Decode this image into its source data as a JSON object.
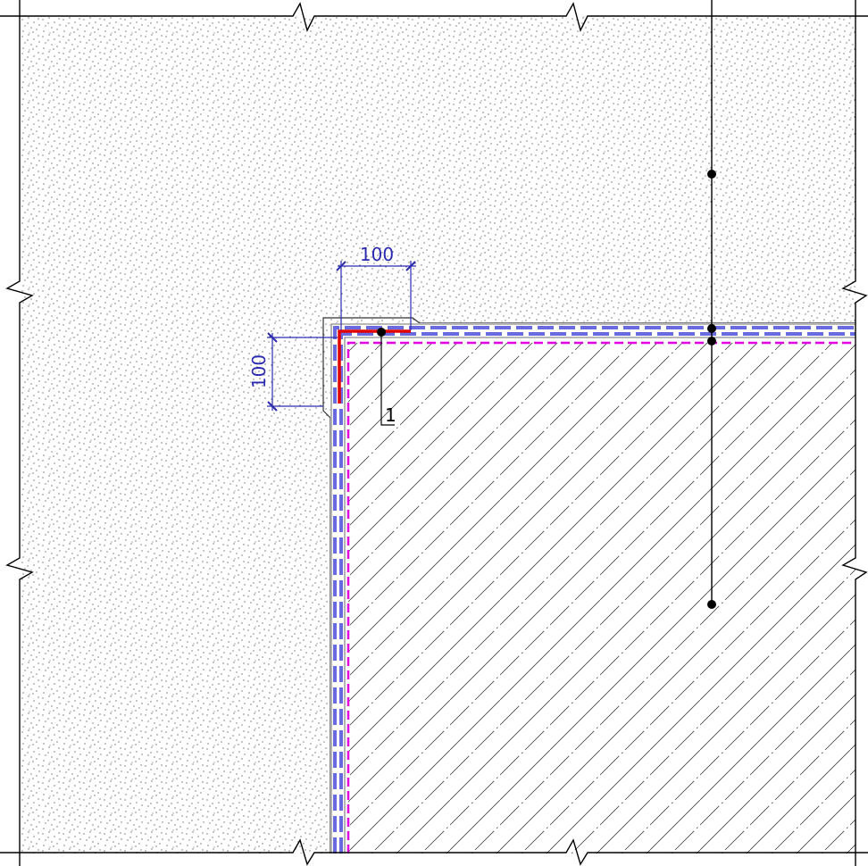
{
  "dimensions": [
    {
      "label": "100"
    },
    {
      "label": "100"
    }
  ],
  "callout": {
    "label": "1"
  }
}
